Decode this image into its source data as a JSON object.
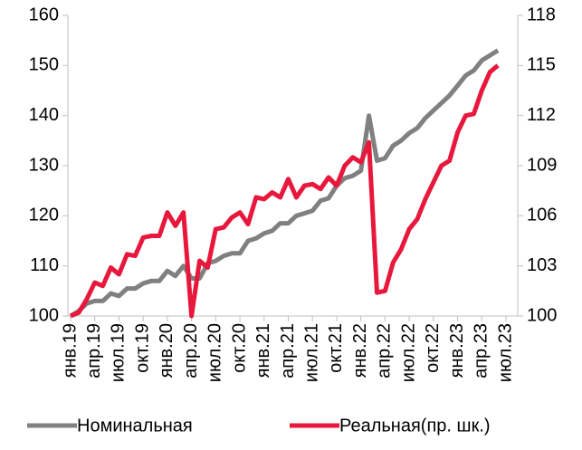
{
  "chart_data": {
    "type": "line",
    "categories": [
      "янв.19",
      null,
      null,
      "апр.19",
      null,
      null,
      "июл.19",
      null,
      null,
      "окт.19",
      null,
      null,
      "янв.20",
      null,
      null,
      "апр.20",
      null,
      null,
      "июл.20",
      null,
      null,
      "окт.20",
      null,
      null,
      "янв.21",
      null,
      null,
      "апр.21",
      null,
      null,
      "июл.21",
      null,
      null,
      "окт.21",
      null,
      null,
      "янв.22",
      null,
      null,
      "апр.22",
      null,
      null,
      "июл.22",
      null,
      null,
      "окт.22",
      null,
      null,
      "янв.23",
      null,
      null,
      "апр.23",
      null,
      null,
      "июл.23"
    ],
    "series": [
      {
        "name": "Номинальная",
        "color": "#808080",
        "values": [
          100,
          101,
          102.5,
          103,
          103,
          104.5,
          104,
          105.5,
          105.5,
          106.5,
          107,
          107,
          109,
          108,
          110,
          107.5,
          107.5,
          110.5,
          111,
          112,
          112.5,
          112.5,
          115,
          115.5,
          116.5,
          117,
          118.5,
          118.5,
          120,
          120.5,
          121,
          123,
          123.5,
          126,
          127.5,
          128,
          129,
          140,
          131,
          131.5,
          134,
          135,
          136.5,
          137.5,
          139.5,
          141,
          142.5,
          144,
          146,
          148,
          149,
          151,
          152,
          153,
          null
        ]
      },
      {
        "name": "Реальная(пр. шк.)",
        "color": "#e8173c",
        "axis": "y2",
        "values": [
          100,
          100.2,
          101,
          102,
          101.8,
          102.9,
          102.5,
          103.7,
          103.6,
          104.7,
          104.8,
          104.8,
          106.2,
          105.4,
          106.2,
          100,
          103.3,
          102.9,
          105.2,
          105.3,
          105.9,
          106.2,
          105.5,
          107.1,
          107,
          107.4,
          107.1,
          108.2,
          107.1,
          107.8,
          107.9,
          107.6,
          108.3,
          107.8,
          109,
          109.5,
          109.2,
          110.4,
          101.4,
          101.5,
          103.2,
          104,
          105.2,
          105.8,
          107,
          108,
          109,
          109.3,
          111,
          112,
          112.1,
          113.5,
          114.6,
          115,
          null
        ]
      }
    ],
    "ylim": [
      100,
      160
    ],
    "yticks": [
      100,
      110,
      120,
      130,
      140,
      150,
      160
    ],
    "y2lim": [
      100,
      118
    ],
    "y2ticks": [
      100,
      103,
      106,
      109,
      112,
      115,
      118
    ],
    "legend": "bottom"
  }
}
